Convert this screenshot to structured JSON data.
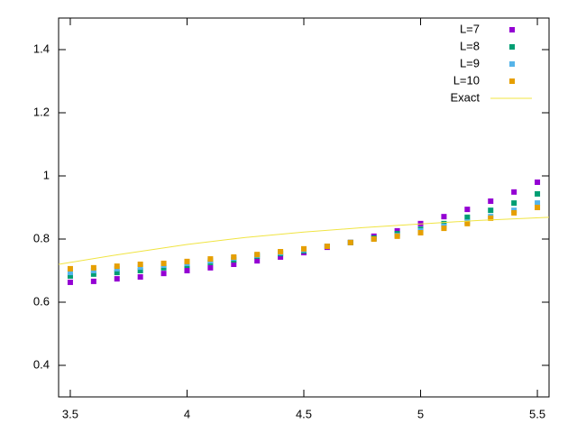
{
  "chart_data": {
    "type": "scatter",
    "x": [
      3.5,
      3.6,
      3.7,
      3.8,
      3.9,
      4.0,
      4.1,
      4.2,
      4.3,
      4.4,
      4.5,
      4.6,
      4.7,
      4.8,
      4.9,
      5.0,
      5.1,
      5.2,
      5.3,
      5.4,
      5.5
    ],
    "series": [
      {
        "name": "L=7",
        "color": "#9400d3",
        "values": [
          0.663,
          0.666,
          0.674,
          0.68,
          0.691,
          0.7,
          0.709,
          0.72,
          0.731,
          0.743,
          0.757,
          0.774,
          0.789,
          0.809,
          0.826,
          0.849,
          0.871,
          0.894,
          0.92,
          0.949,
          0.98
        ]
      },
      {
        "name": "L=8",
        "color": "#009e73",
        "values": [
          0.683,
          0.689,
          0.694,
          0.7,
          0.709,
          0.717,
          0.726,
          0.734,
          0.746,
          0.754,
          0.763,
          0.777,
          0.789,
          0.803,
          0.817,
          0.831,
          0.849,
          0.869,
          0.891,
          0.914,
          0.943
        ]
      },
      {
        "name": "L=9",
        "color": "#56b4e9",
        "values": [
          0.694,
          0.7,
          0.706,
          0.711,
          0.717,
          0.723,
          0.731,
          0.74,
          0.749,
          0.757,
          0.766,
          0.777,
          0.789,
          0.8,
          0.811,
          0.826,
          0.84,
          0.854,
          0.871,
          0.891,
          0.914
        ]
      },
      {
        "name": "L=10",
        "color": "#e69f00",
        "values": [
          0.706,
          0.709,
          0.714,
          0.72,
          0.723,
          0.729,
          0.737,
          0.743,
          0.751,
          0.76,
          0.769,
          0.777,
          0.789,
          0.8,
          0.809,
          0.82,
          0.834,
          0.849,
          0.866,
          0.883,
          0.9
        ]
      },
      {
        "name": "Exact",
        "color": "#f0e442",
        "line": true,
        "x": [
          3.45,
          3.7,
          4.0,
          4.25,
          4.5,
          4.75,
          5.0,
          5.25,
          5.55
        ],
        "values": [
          0.72,
          0.75,
          0.783,
          0.805,
          0.822,
          0.836,
          0.848,
          0.859,
          0.869
        ]
      }
    ],
    "xlim": [
      3.45,
      5.55
    ],
    "xticks": [
      3.5,
      4,
      4.5,
      5,
      5.5
    ],
    "ylim": [
      0.3,
      1.5
    ],
    "yticks": [
      0.4,
      0.6,
      0.8,
      1,
      1.2,
      1.4
    ],
    "legend": "top-right",
    "grid": false
  }
}
